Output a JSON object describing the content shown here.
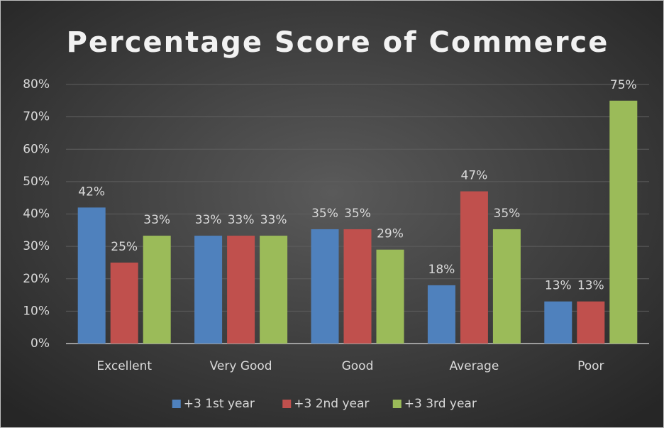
{
  "chart_data": {
    "type": "bar",
    "title": "Percentage Score of Commerce",
    "categories": [
      "Excellent",
      "Very Good",
      "Good",
      "Average",
      "Poor"
    ],
    "series": [
      {
        "name": "+3 1st year",
        "color": "#4f81bd",
        "values": [
          42,
          33.3,
          35.3,
          18,
          13
        ],
        "value_labels": [
          "42%",
          "33%",
          "35%",
          "18%",
          "13%"
        ]
      },
      {
        "name": "+3 2nd year",
        "color": "#c0504d",
        "values": [
          25,
          33.3,
          35.3,
          47,
          13
        ],
        "value_labels": [
          "25%",
          "33%",
          "35%",
          "47%",
          "13%"
        ]
      },
      {
        "name": "+3 3rd year",
        "color": "#9bbb59",
        "values": [
          33.3,
          33.3,
          29,
          35.3,
          75
        ],
        "value_labels": [
          "33%",
          "33%",
          "29%",
          "35%",
          "75%"
        ]
      }
    ],
    "ylim": [
      0,
      80
    ],
    "yticks": [
      {
        "value": 0,
        "label": "0%"
      },
      {
        "value": 10,
        "label": "10%"
      },
      {
        "value": 20,
        "label": "20%"
      },
      {
        "value": 30,
        "label": "30%"
      },
      {
        "value": 40,
        "label": "40%"
      },
      {
        "value": 50,
        "label": "50%"
      },
      {
        "value": 60,
        "label": "60%"
      },
      {
        "value": 70,
        "label": "70%"
      },
      {
        "value": 80,
        "label": "80%"
      }
    ],
    "grid": true,
    "legend": "bottom"
  }
}
